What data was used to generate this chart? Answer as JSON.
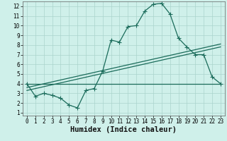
{
  "xlabel": "Humidex (Indice chaleur)",
  "bg_color": "#cff0ea",
  "grid_color": "#aad4cc",
  "line_color": "#1a6b5a",
  "xlim": [
    -0.5,
    23.5
  ],
  "ylim": [
    0.7,
    12.5
  ],
  "xticks": [
    0,
    1,
    2,
    3,
    4,
    5,
    6,
    7,
    8,
    9,
    10,
    11,
    12,
    13,
    14,
    15,
    16,
    17,
    18,
    19,
    20,
    21,
    22,
    23
  ],
  "yticks": [
    1,
    2,
    3,
    4,
    5,
    6,
    7,
    8,
    9,
    10,
    11,
    12
  ],
  "main_x": [
    0,
    1,
    2,
    3,
    4,
    5,
    6,
    7,
    8,
    9,
    10,
    11,
    12,
    13,
    14,
    15,
    16,
    17,
    18,
    19,
    20,
    21,
    22,
    23
  ],
  "main_y": [
    4.0,
    2.7,
    3.0,
    2.8,
    2.5,
    1.8,
    1.5,
    3.3,
    3.5,
    5.3,
    8.5,
    8.3,
    9.9,
    10.0,
    11.5,
    12.2,
    12.3,
    11.2,
    8.7,
    7.8,
    7.0,
    7.0,
    4.7,
    4.0
  ],
  "line1_x": [
    0,
    23
  ],
  "line1_y": [
    4.0,
    4.0
  ],
  "line2_x": [
    0,
    23
  ],
  "line2_y": [
    3.3,
    7.8
  ],
  "line3_x": [
    0,
    23
  ],
  "line3_y": [
    3.6,
    8.1
  ],
  "marker": "+",
  "markersize": 4,
  "linewidth": 0.9,
  "tick_fontsize": 5.5,
  "xlabel_fontsize": 7.5
}
